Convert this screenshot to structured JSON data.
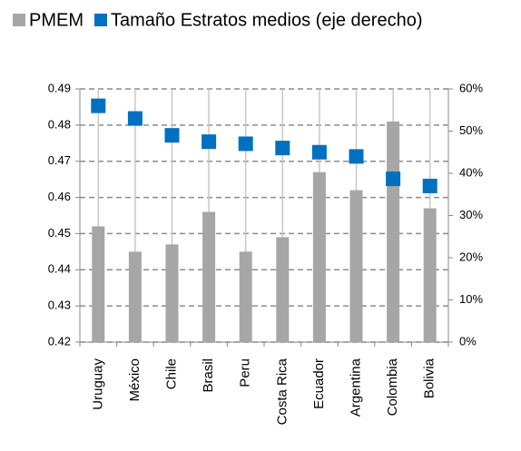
{
  "chart_data": {
    "type": "bar_scatter",
    "categories": [
      "Uruguay",
      "México",
      "Chile",
      "Brasil",
      "Peru",
      "Costa Rica",
      "Ecuador",
      "Argentina",
      "Colombia",
      "Bolivia"
    ],
    "series": [
      {
        "name": "PMEM",
        "color": "#a6a6a6",
        "type": "bar",
        "values": [
          0.452,
          0.445,
          0.447,
          0.456,
          0.445,
          0.449,
          0.467,
          0.462,
          0.481,
          0.457
        ]
      },
      {
        "name": "Tamaño Estratos medios (eje derecho)",
        "color": "#0070c0",
        "type": "scatter",
        "axis": "y2",
        "values": [
          56,
          53,
          49,
          47.5,
          47,
          46,
          45,
          44,
          38.7,
          37
        ]
      }
    ],
    "ylim": [
      0.42,
      0.49
    ],
    "yticks": [
      0.42,
      0.43,
      0.44,
      0.45,
      0.46,
      0.47,
      0.48,
      0.49
    ],
    "y2lim": [
      0,
      60
    ],
    "y2ticks": [
      {
        "value": 0,
        "label": "0%"
      },
      {
        "value": 10,
        "label": "10%"
      },
      {
        "value": 20,
        "label": "20%"
      },
      {
        "value": 30,
        "label": "30%"
      },
      {
        "value": 40,
        "label": "40%"
      },
      {
        "value": 50,
        "label": "50%"
      },
      {
        "value": 60,
        "label": "60%"
      }
    ],
    "grid": true
  }
}
